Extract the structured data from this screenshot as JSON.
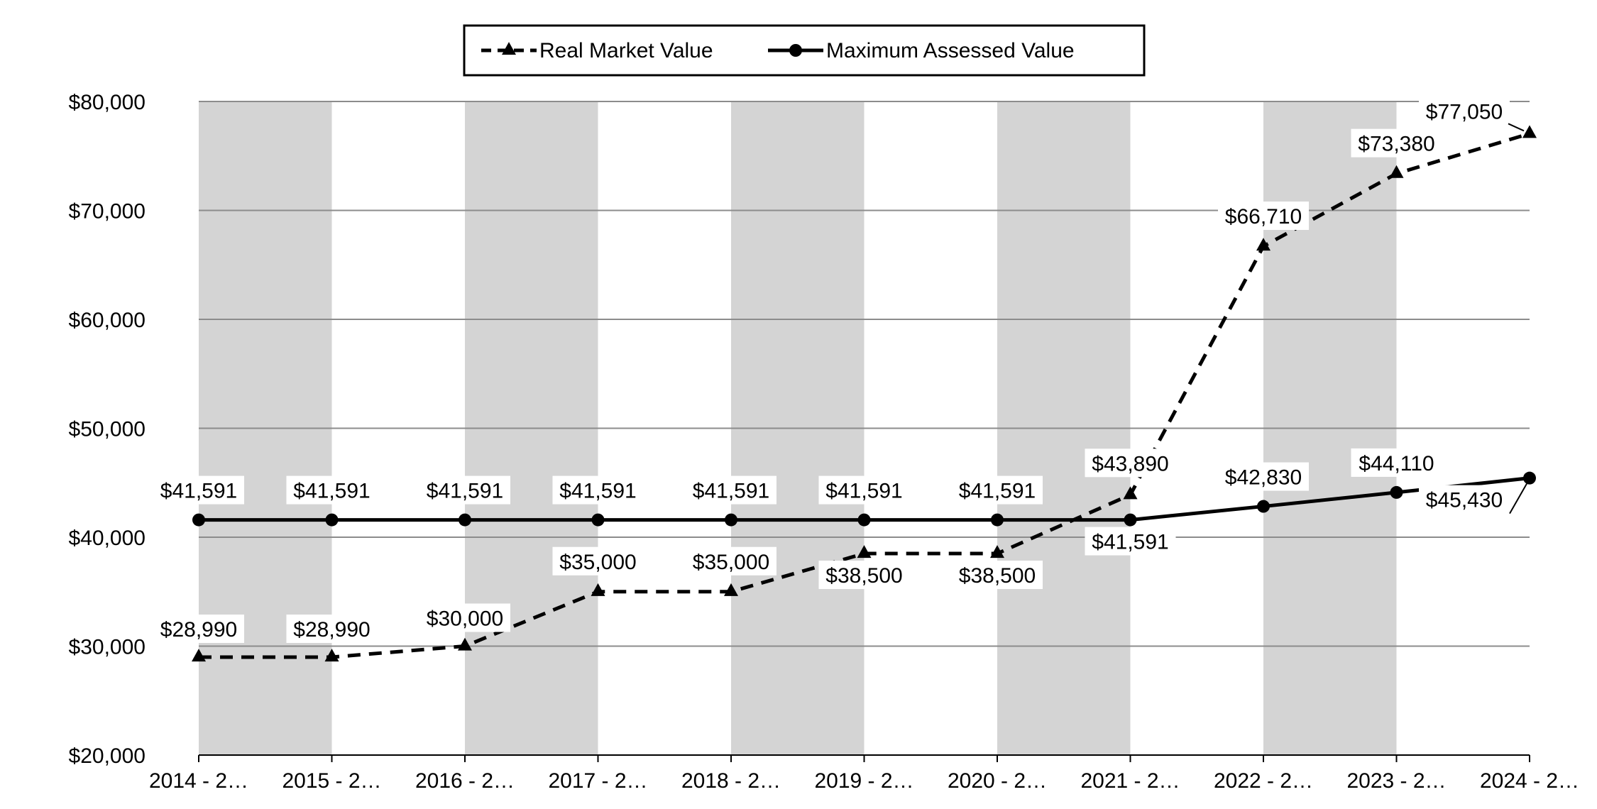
{
  "chart_data": {
    "type": "line",
    "categories": [
      "2014 - 2…",
      "2015 - 2…",
      "2016 - 2…",
      "2017 - 2…",
      "2018 - 2…",
      "2019 - 2…",
      "2020 - 2…",
      "2021 - 2…",
      "2022 - 2…",
      "2023 - 2…",
      "2024 - 2…"
    ],
    "series": [
      {
        "name": "Real Market Value",
        "style": "dashed",
        "marker": "triangle",
        "values": [
          28990,
          28990,
          30000,
          35000,
          35000,
          38500,
          38500,
          43890,
          66710,
          73380,
          77050
        ],
        "labels": [
          "$28,990",
          "$28,990",
          "$30,000",
          "$35,000",
          "$35,000",
          "$38,500",
          "$38,500",
          "$43,890",
          "$66,710",
          "$73,380",
          "$77,050"
        ]
      },
      {
        "name": "Maximum Assessed Value",
        "style": "solid",
        "marker": "circle",
        "values": [
          41591,
          41591,
          41591,
          41591,
          41591,
          41591,
          41591,
          41591,
          42830,
          44110,
          45430
        ],
        "labels": [
          "$41,591",
          "$41,591",
          "$41,591",
          "$41,591",
          "$41,591",
          "$41,591",
          "$41,591",
          "$41,591",
          "$42,830",
          "$44,110",
          "$45,430"
        ]
      }
    ],
    "y_ticks": [
      "$20,000",
      "$30,000",
      "$40,000",
      "$50,000",
      "$60,000",
      "$70,000",
      "$80,000"
    ],
    "ylim": [
      20000,
      80000
    ],
    "legend": "top-center",
    "grid": true,
    "title": "",
    "xlabel": "",
    "ylabel": "",
    "colors": {
      "line": "#000000",
      "band": "#d4d4d4",
      "grid": "#8c8c8c",
      "background": "#ffffff"
    }
  }
}
